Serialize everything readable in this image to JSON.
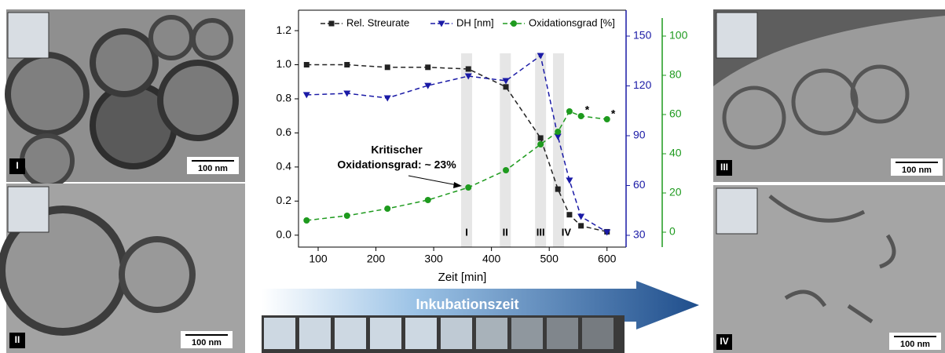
{
  "chart_data": {
    "type": "line",
    "x_label": "Zeit [min]",
    "xlim": [
      66,
      633
    ],
    "xticks": [
      100,
      200,
      300,
      400,
      500,
      600
    ],
    "ylim": [
      -0.07,
      1.32
    ],
    "yticks": [
      {
        "value": 0,
        "label": "0.0"
      },
      0.2,
      0.4,
      0.6,
      0.8,
      {
        "value": 1,
        "label": "1.0"
      },
      1.2
    ],
    "y2lim": [
      22.9,
      165.6
    ],
    "y2ticks": [
      30,
      60,
      90,
      120,
      150
    ],
    "y3lim": [
      -7.6,
      113.2
    ],
    "y3ticks": [
      0,
      20,
      40,
      60,
      80,
      100
    ],
    "series": [
      {
        "name": "Rel. Streurate",
        "color": "#222222",
        "marker": "square",
        "axis": "y",
        "x": [
          80,
          150,
          220,
          290,
          360,
          425,
          485,
          515,
          535,
          555,
          600
        ],
        "values": [
          1.0,
          1.0,
          0.985,
          0.985,
          0.975,
          0.87,
          0.57,
          0.27,
          0.12,
          0.055,
          0.02
        ]
      },
      {
        "name": "DH [nm]",
        "color": "#1a1aa6",
        "marker": "triangle",
        "axis": "y2",
        "x": [
          80,
          150,
          220,
          290,
          360,
          425,
          485,
          515,
          535,
          555,
          600
        ],
        "values": [
          114.6,
          115.5,
          112.7,
          120.2,
          125.9,
          123.1,
          138.2,
          89.5,
          63.1,
          41.3,
          31.9
        ]
      },
      {
        "name": "Oxidationsgrad [%]",
        "color": "#1e9a1e",
        "marker": "circle",
        "axis": "y3",
        "x": [
          80,
          150,
          220,
          290,
          360,
          425,
          485,
          515,
          535,
          555,
          600
        ],
        "values": [
          6,
          8.4,
          12,
          16.4,
          22.8,
          31.6,
          44.8,
          51.2,
          61.6,
          59.2,
          57.6
        ]
      }
    ],
    "bands": [
      {
        "x": 357,
        "label": "I"
      },
      {
        "x": 424,
        "label": "II"
      },
      {
        "x": 485,
        "label": "III"
      },
      {
        "x": 516,
        "label": "IV"
      }
    ],
    "annotation": {
      "lines": [
        "Kritischer",
        "Oxidationsgrad: ~ 23%"
      ]
    },
    "asterisks": [
      {
        "text": "*",
        "x": 562,
        "y": 62
      },
      {
        "text": "*",
        "x": 607,
        "y": 60
      }
    ],
    "arrow_label": "Inkubationszeit",
    "panels": [
      {
        "label": "I",
        "scale": "100 nm"
      },
      {
        "label": "II",
        "scale": "100 nm"
      },
      {
        "label": "III",
        "scale": "100 nm"
      },
      {
        "label": "IV",
        "scale": "100 nm"
      }
    ]
  }
}
